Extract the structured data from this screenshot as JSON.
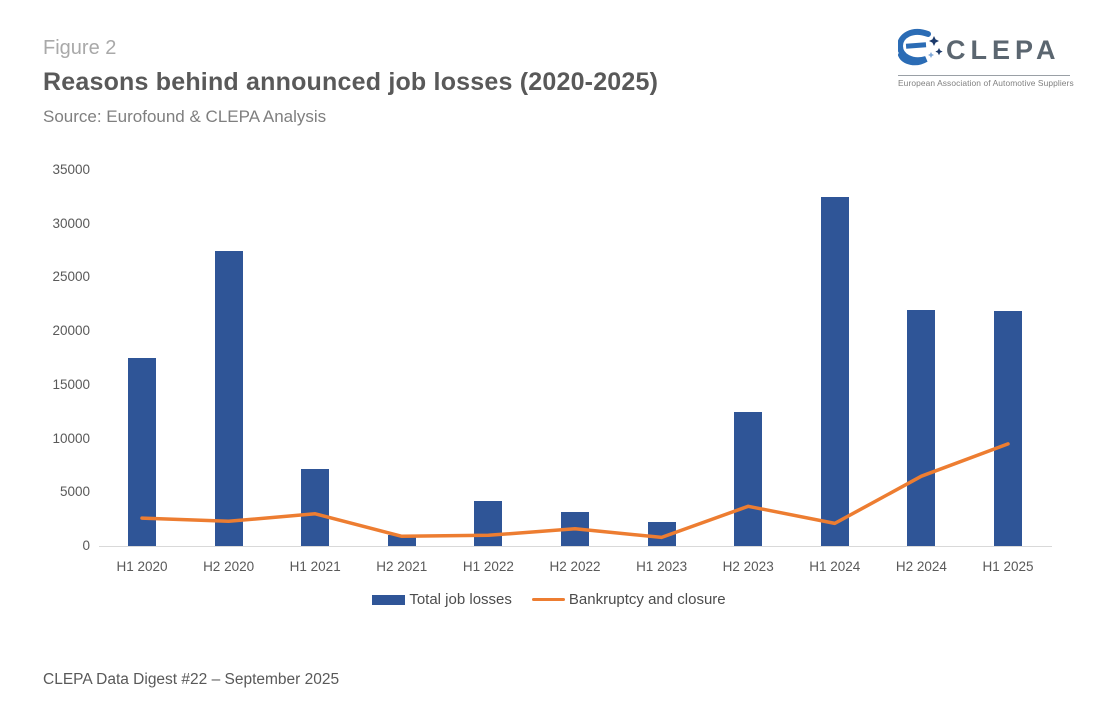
{
  "header": {
    "figure_label": "Figure 2",
    "title": "Reasons behind announced job losses (2020-2025)",
    "source": "Source: Eurofound & CLEPA Analysis"
  },
  "logo": {
    "name": "CLEPA",
    "tagline": "European Association of Automotive Suppliers"
  },
  "footer": {
    "text": "CLEPA Data Digest #22 – September 2025"
  },
  "colors": {
    "bar": "#2f5597",
    "line": "#ed7d31",
    "axis": "#d9d9d9",
    "tick_label": "#595959",
    "logo_icon_blue": "#2b6cb5",
    "logo_star_navy": "#1b3a6b",
    "logo_text": "#5b6670"
  },
  "chart_data": {
    "type": "bar",
    "subtype": "bar-with-line-overlay",
    "title": "Reasons behind announced job losses (2020-2025)",
    "xlabel": "",
    "ylabel": "",
    "categories": [
      "H1 2020",
      "H2 2020",
      "H1 2021",
      "H2 2021",
      "H1 2022",
      "H2 2022",
      "H1 2023",
      "H2 2023",
      "H1 2024",
      "H2 2024",
      "H1 2025"
    ],
    "series": [
      {
        "name": "Total job losses",
        "type": "bar",
        "color": "#2f5597",
        "values": [
          17500,
          27500,
          7200,
          1000,
          4200,
          3200,
          2200,
          12500,
          32500,
          22000,
          21900
        ]
      },
      {
        "name": "Bankruptcy and closure",
        "type": "line",
        "color": "#ed7d31",
        "values": [
          2600,
          2300,
          3000,
          900,
          1000,
          1600,
          800,
          3700,
          2100,
          6500,
          9500
        ]
      }
    ],
    "ylim": [
      0,
      35000
    ],
    "yticks": [
      0,
      5000,
      10000,
      15000,
      20000,
      25000,
      30000,
      35000
    ],
    "grid": false,
    "legend_position": "bottom"
  }
}
